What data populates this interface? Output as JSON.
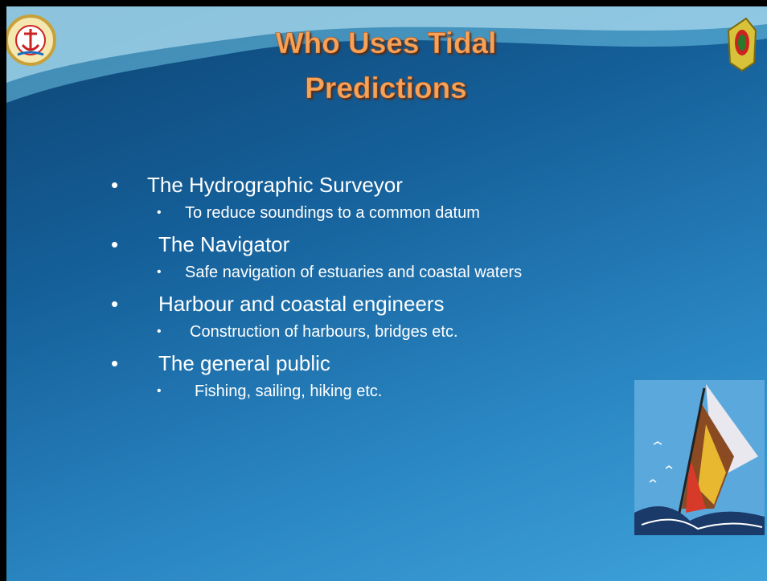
{
  "slide": {
    "title": "Who Uses Tidal Predictions",
    "items": [
      {
        "text": "The Hydrographic Surveyor",
        "sub": [
          "To reduce soundings to a common datum"
        ]
      },
      {
        "text": "The Navigator",
        "sub": [
          "Safe navigation of estuaries and coastal waters"
        ]
      },
      {
        "text": "Harbour and coastal engineers",
        "sub": [
          "Construction of harbours, bridges etc."
        ]
      },
      {
        "text": "The general public",
        "sub": [
          "Fishing, sailing, hiking etc."
        ]
      }
    ]
  }
}
